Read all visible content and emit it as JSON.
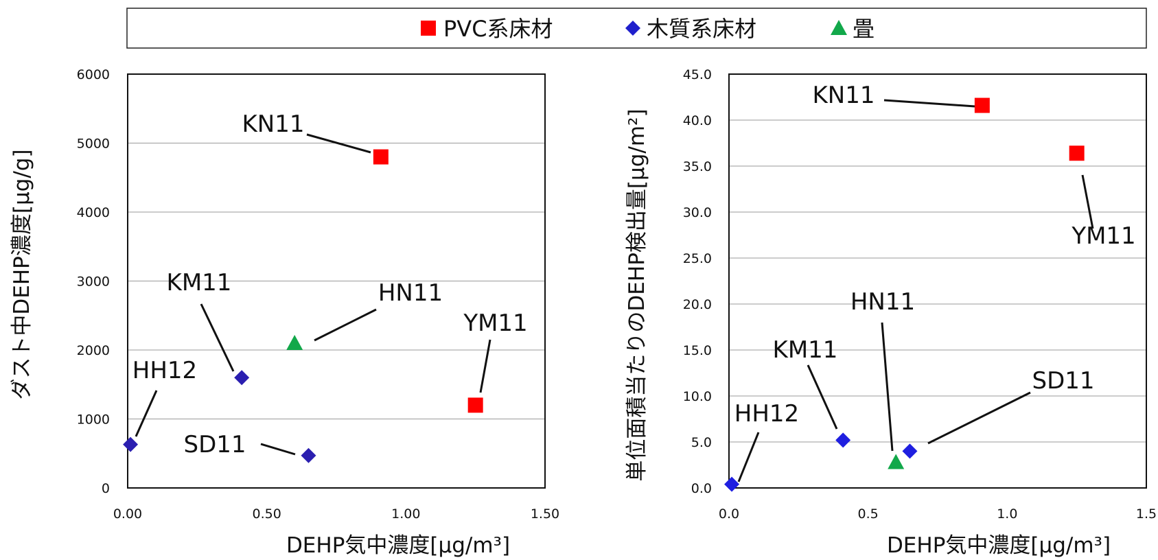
{
  "legend": {
    "items": [
      {
        "label": "PVC系床材",
        "marker": "square",
        "color": "#ff0000"
      },
      {
        "label": "木質系床材",
        "marker": "diamond",
        "color": "#1f1fcc"
      },
      {
        "label": "畳",
        "marker": "triangle",
        "color": "#12a84a"
      }
    ]
  },
  "chart_data": [
    {
      "type": "scatter",
      "xlabel": "DEHP気中濃度[μg/m³]",
      "ylabel": "ダスト中DEHP濃度[μg/g]",
      "xlim": [
        0,
        1.5
      ],
      "ylim": [
        0,
        6000
      ],
      "x_ticks": [
        "0.00",
        "0.50",
        "1.00",
        "1.50"
      ],
      "y_ticks": [
        "0",
        "1000",
        "2000",
        "3000",
        "4000",
        "5000",
        "6000"
      ],
      "grid": "horizontal",
      "series": [
        {
          "name": "PVC系床材",
          "color": "#ff0000",
          "marker": "square",
          "points": [
            {
              "label": "KN11",
              "x": 0.91,
              "y": 4800
            },
            {
              "label": "YM11",
              "x": 1.25,
              "y": 1200
            }
          ]
        },
        {
          "name": "木質系床材",
          "color": "#2b1fb0",
          "marker": "diamond",
          "points": [
            {
              "label": "KM11",
              "x": 0.41,
              "y": 1600
            },
            {
              "label": "HH12",
              "x": 0.01,
              "y": 630
            },
            {
              "label": "SD11",
              "x": 0.65,
              "y": 470
            }
          ]
        },
        {
          "name": "畳",
          "color": "#12a84a",
          "marker": "triangle",
          "points": [
            {
              "label": "HN11",
              "x": 0.6,
              "y": 2100
            }
          ]
        }
      ]
    },
    {
      "type": "scatter",
      "xlabel": "DEHP気中濃度[μg/m³]",
      "ylabel": "単位面積当たりのDEHP検出量[μg/m²]",
      "xlim": [
        0,
        1.5
      ],
      "ylim": [
        0,
        45
      ],
      "x_ticks": [
        "0.0",
        "0.5",
        "1.0",
        "1.5"
      ],
      "y_ticks": [
        "0.0",
        "5.0",
        "10.0",
        "15.0",
        "20.0",
        "25.0",
        "30.0",
        "35.0",
        "40.0",
        "45.0"
      ],
      "grid": "horizontal",
      "series": [
        {
          "name": "PVC系床材",
          "color": "#ff0000",
          "marker": "square",
          "points": [
            {
              "label": "KN11",
              "x": 0.91,
              "y": 41.6
            },
            {
              "label": "YM11",
              "x": 1.25,
              "y": 36.4
            }
          ]
        },
        {
          "name": "木質系床材",
          "color": "#1f1fe0",
          "marker": "diamond",
          "points": [
            {
              "label": "HH12",
              "x": 0.01,
              "y": 0.4
            },
            {
              "label": "KM11",
              "x": 0.41,
              "y": 5.2
            },
            {
              "label": "SD11",
              "x": 0.65,
              "y": 4.0
            }
          ]
        },
        {
          "name": "畳",
          "color": "#12a84a",
          "marker": "triangle",
          "points": [
            {
              "label": "HN11",
              "x": 0.6,
              "y": 2.8
            }
          ]
        }
      ]
    }
  ]
}
